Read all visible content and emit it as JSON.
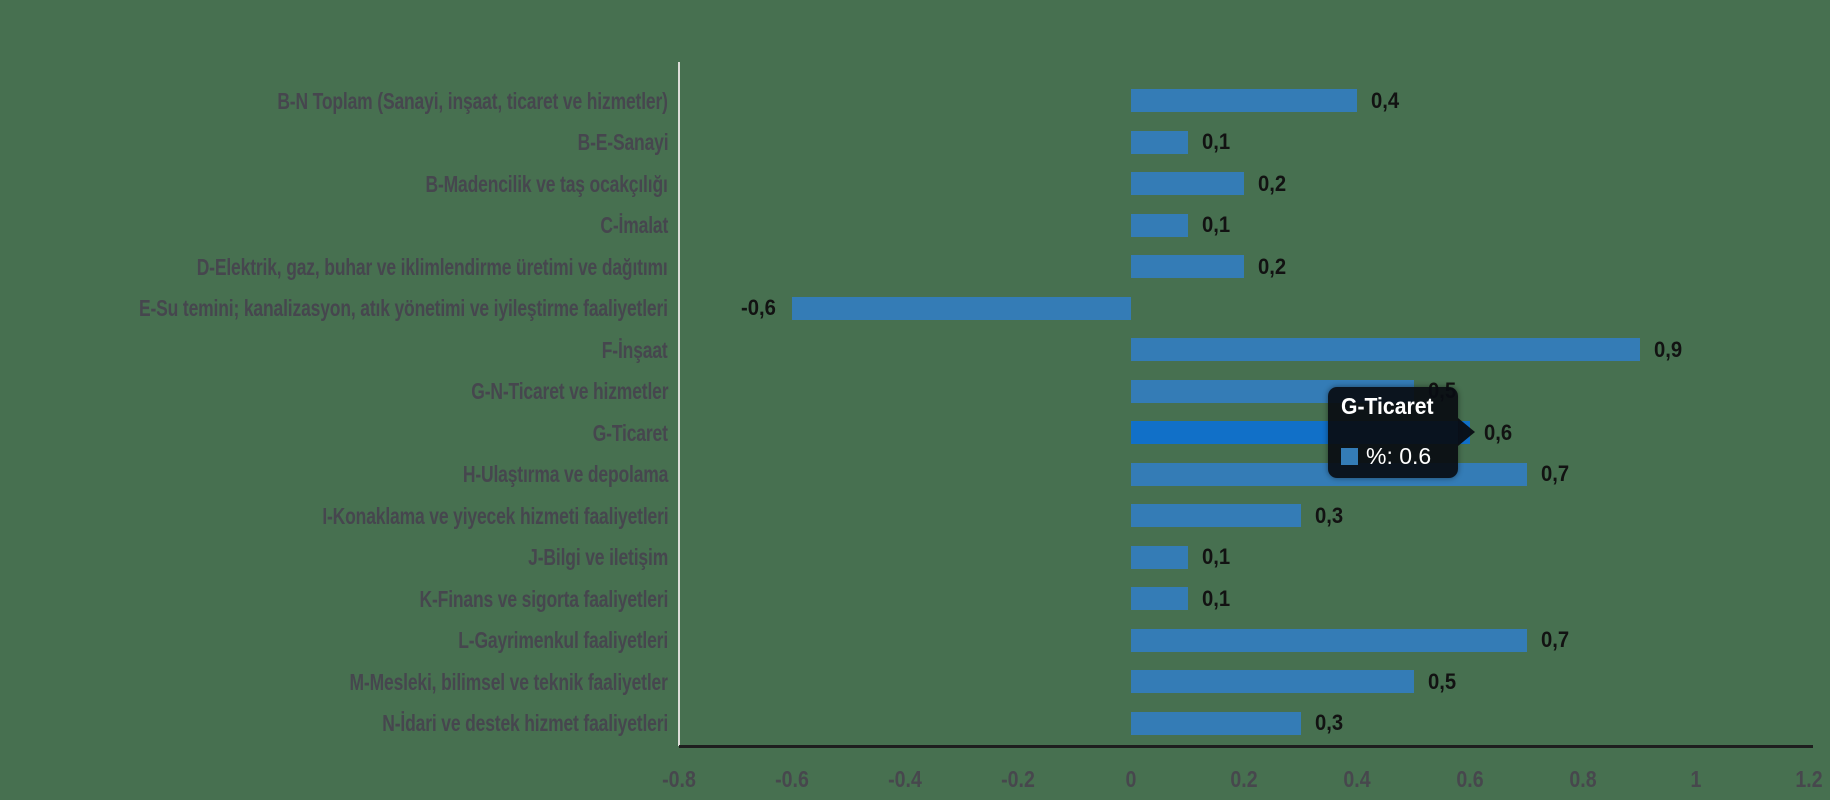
{
  "chart_data": {
    "type": "bar",
    "orientation": "horizontal",
    "title": "",
    "xlabel": "",
    "ylabel": "",
    "xlim": [
      -0.8,
      1.2
    ],
    "grid": false,
    "legend": false,
    "categories": [
      "B-N Toplam (Sanayi, inşaat, ticaret ve hizmetler)",
      "B-E-Sanayi",
      "B-Madencilik ve taş ocakçılığı",
      "C-İmalat",
      "D-Elektrik, gaz, buhar ve iklimlendirme üretimi ve dağıtımı",
      "E-Su temini; kanalizasyon, atık yönetimi ve iyileştirme faaliyetleri",
      "F-İnşaat",
      "G-N-Ticaret ve hizmetler",
      "G-Ticaret",
      "H-Ulaştırma ve depolama",
      "I-Konaklama ve yiyecek hizmeti faaliyetleri",
      "J-Bilgi ve iletişim",
      "K-Finans ve sigorta faaliyetleri",
      "L-Gayrimenkul faaliyetleri",
      "M-Mesleki, bilimsel ve teknik faaliyetler",
      "N-İdari ve destek hizmet faaliyetleri"
    ],
    "values": [
      0.4,
      0.1,
      0.2,
      0.1,
      0.2,
      -0.6,
      0.9,
      0.5,
      0.6,
      0.7,
      0.3,
      0.1,
      0.1,
      0.7,
      0.5,
      0.3
    ],
    "value_labels": [
      "0,4",
      "0,1",
      "0,2",
      "0,1",
      "0,2",
      "-0,6",
      "0,9",
      "0,5",
      "0,6",
      "0,7",
      "0,3",
      "0,1",
      "0,1",
      "0,7",
      "0,5",
      "0,3"
    ],
    "x_ticks": [
      "-0.8",
      "-0.6",
      "-0.4",
      "-0.2",
      "0",
      "0.2",
      "0.4",
      "0.6",
      "0.8",
      "1",
      "1.2"
    ],
    "x_tick_values": [
      -0.8,
      -0.6,
      -0.4,
      -0.2,
      0,
      0.2,
      0.4,
      0.6,
      0.8,
      1,
      1.2
    ],
    "highlighted_index": 8,
    "colors": {
      "bar": "#347CB6",
      "bar_highlight": "#1170C8",
      "category_label": "#46464E",
      "axis_label": "#47474D",
      "value_label": "#121212",
      "x_axis_line": "#1E1E1E",
      "y_axis_line": "#DDDDD8",
      "background": "#477050"
    }
  },
  "tooltip": {
    "title": "G-Ticaret",
    "value_text": "%: 0.6",
    "swatch_color": "#347CB6"
  }
}
